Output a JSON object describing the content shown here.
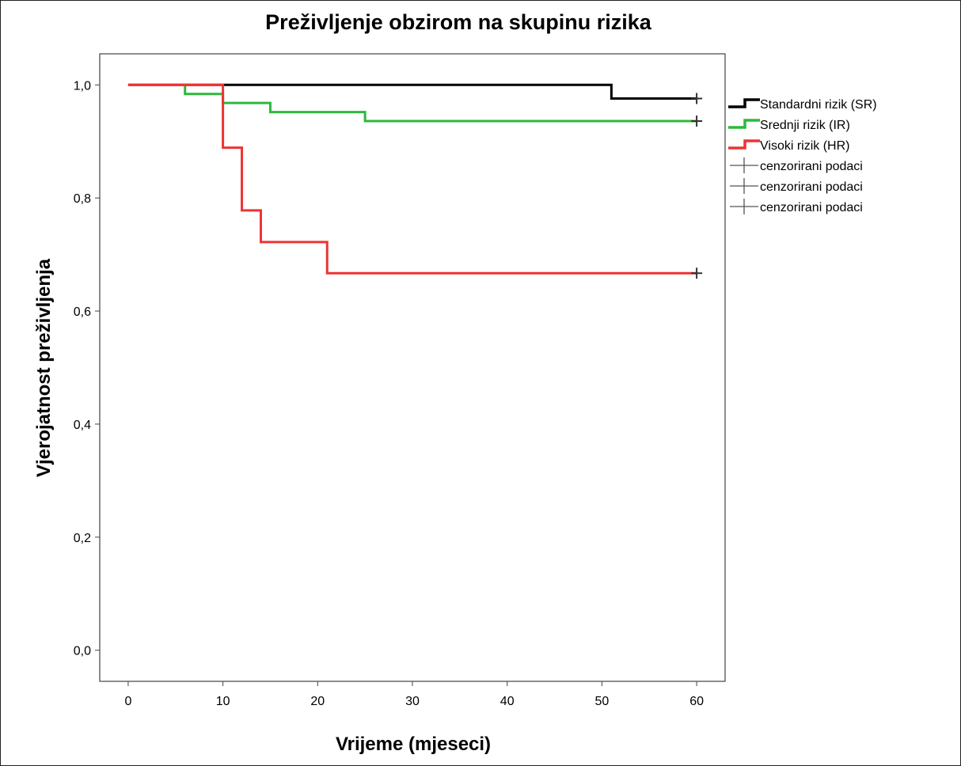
{
  "chart_data": {
    "type": "line",
    "step": true,
    "title": "Preživljenje obzirom na skupinu rizika",
    "xlabel": "Vrijeme (mjeseci)",
    "ylabel": "Vjerojatnost preživljenja",
    "xlim": [
      -3,
      63
    ],
    "ylim": [
      -0.055,
      1.055
    ],
    "x_ticks": [
      0,
      10,
      20,
      30,
      40,
      50,
      60
    ],
    "x_tick_labels": [
      "0",
      "10",
      "20",
      "30",
      "40",
      "50",
      "60"
    ],
    "y_ticks": [
      0.0,
      0.2,
      0.4,
      0.6,
      0.8,
      1.0
    ],
    "y_tick_labels": [
      "0,0",
      "0,2",
      "0,4",
      "0,6",
      "0,8",
      "1,0"
    ],
    "grid": false,
    "legend_position": "right",
    "series": [
      {
        "name": "Standardni rizik (SR)",
        "color": "#000000",
        "steps": [
          [
            0,
            1.0
          ],
          [
            51,
            0.976
          ],
          [
            60,
            0.976
          ]
        ],
        "censored": [
          [
            60,
            0.976
          ]
        ]
      },
      {
        "name": "Srednji rizik (IR)",
        "color": "#2db83d",
        "steps": [
          [
            0,
            1.0
          ],
          [
            6,
            0.984
          ],
          [
            10,
            0.968
          ],
          [
            15,
            0.952
          ],
          [
            25,
            0.936
          ],
          [
            60,
            0.936
          ]
        ],
        "censored": [
          [
            60,
            0.936
          ]
        ]
      },
      {
        "name": "Visoki rizik (HR)",
        "color": "#ee3333",
        "steps": [
          [
            0,
            1.0
          ],
          [
            10,
            0.889
          ],
          [
            12,
            0.778
          ],
          [
            14,
            0.722
          ],
          [
            21,
            0.667
          ],
          [
            60,
            0.667
          ]
        ],
        "censored": [
          [
            60,
            0.667
          ]
        ]
      }
    ],
    "censored_legend": [
      {
        "label": "cenzorirani podaci"
      },
      {
        "label": "cenzorirani podaci"
      },
      {
        "label": "cenzorirani podaci"
      }
    ]
  }
}
